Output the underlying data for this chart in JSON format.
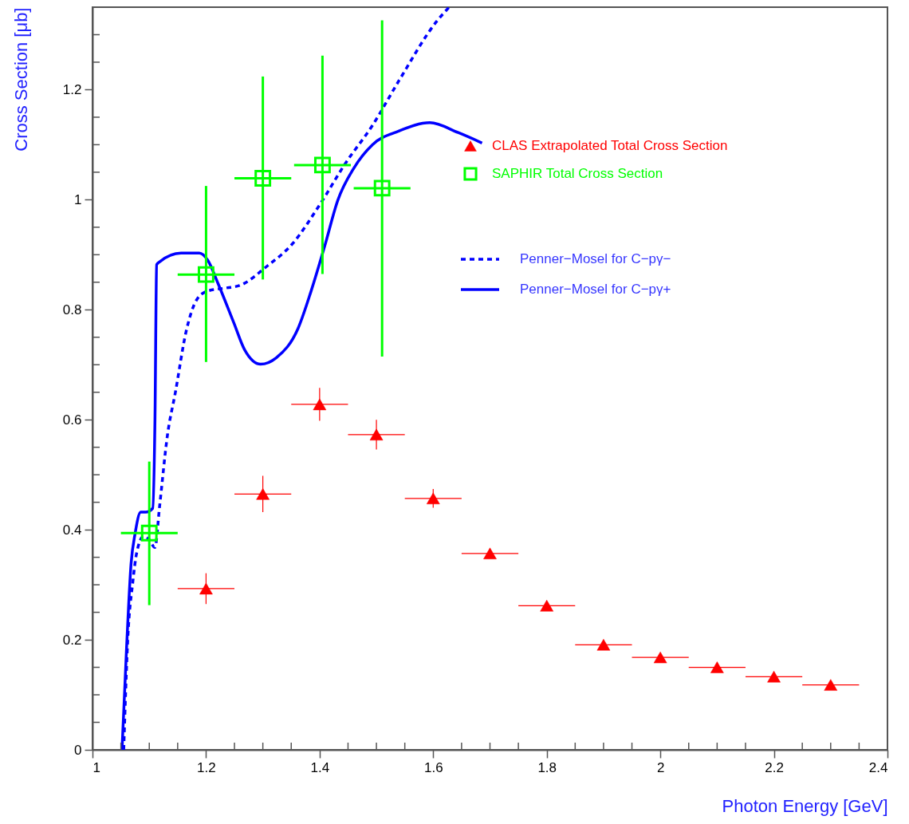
{
  "chart_data": {
    "type": "scatter",
    "xlabel": "Photon Energy [GeV]",
    "ylabel": "Cross Section [μb]",
    "xlim": [
      1,
      2.4
    ],
    "ylim": [
      0,
      1.35
    ],
    "xticks": [
      1,
      {
        "value": 1.05,
        "label": null
      },
      {
        "value": 1.1,
        "label": null
      },
      {
        "value": 1.15,
        "label": null
      },
      1.2,
      {
        "value": 1.25,
        "label": null
      },
      {
        "value": 1.3,
        "label": null
      },
      {
        "value": 1.35,
        "label": null
      },
      1.4,
      {
        "value": 1.45,
        "label": null
      },
      {
        "value": 1.5,
        "label": null
      },
      {
        "value": 1.55,
        "label": null
      },
      1.6,
      {
        "value": 1.65,
        "label": null
      },
      {
        "value": 1.7,
        "label": null
      },
      {
        "value": 1.75,
        "label": null
      },
      1.8,
      {
        "value": 1.85,
        "label": null
      },
      {
        "value": 1.9,
        "label": null
      },
      {
        "value": 1.95,
        "label": null
      },
      2,
      {
        "value": 2.05,
        "label": null
      },
      {
        "value": 2.1,
        "label": null
      },
      {
        "value": 2.15,
        "label": null
      },
      2.2,
      {
        "value": 2.25,
        "label": null
      },
      {
        "value": 2.3,
        "label": null
      },
      {
        "value": 2.35,
        "label": null
      },
      2.4
    ],
    "yticks": [
      0,
      {
        "value": 0.05,
        "label": null
      },
      {
        "value": 0.1,
        "label": null
      },
      {
        "value": 0.15,
        "label": null
      },
      0.2,
      {
        "value": 0.25,
        "label": null
      },
      {
        "value": 0.3,
        "label": null
      },
      {
        "value": 0.35,
        "label": null
      },
      0.4,
      {
        "value": 0.45,
        "label": null
      },
      {
        "value": 0.5,
        "label": null
      },
      {
        "value": 0.55,
        "label": null
      },
      0.6,
      {
        "value": 0.65,
        "label": null
      },
      {
        "value": 0.7,
        "label": null
      },
      {
        "value": 0.75,
        "label": null
      },
      0.8,
      {
        "value": 0.85,
        "label": null
      },
      {
        "value": 0.9,
        "label": null
      },
      {
        "value": 0.95,
        "label": null
      },
      1,
      {
        "value": 1.05,
        "label": null
      },
      {
        "value": 1.1,
        "label": null
      },
      {
        "value": 1.15,
        "label": null
      },
      1.2,
      {
        "value": 1.25,
        "label": null
      },
      {
        "value": 1.3,
        "label": null
      }
    ],
    "grid": false,
    "legend": "top right",
    "series": [
      {
        "name": "CLAS Extrapolated Total Cross Section",
        "color": "#ff0000",
        "marker": "triangle",
        "x": [
          1.2,
          1.3,
          1.4,
          1.5,
          1.6,
          1.7,
          1.8,
          1.9,
          2.0,
          2.1,
          2.2,
          2.3
        ],
        "values": [
          0.293,
          0.465,
          0.628,
          0.573,
          0.457,
          0.357,
          0.262,
          0.191,
          0.168,
          0.15,
          0.133,
          0.118
        ],
        "errors": [
          0.028,
          0.033,
          0.03,
          0.027,
          0.017,
          null,
          null,
          null,
          null,
          null,
          null,
          null
        ],
        "xerrors": [
          0.05,
          0.05,
          0.05,
          0.05,
          0.05,
          0.05,
          0.05,
          0.05,
          0.05,
          0.05,
          0.05,
          0.05
        ]
      },
      {
        "name": "SAPHIR Total Cross Section",
        "color": "#00ff00",
        "marker": "square",
        "x": [
          1.1,
          1.2,
          1.3,
          1.405,
          1.51
        ],
        "values": [
          0.394,
          0.864,
          1.039,
          1.063,
          1.021
        ],
        "errors": [
          [
            0.263,
            0.524
          ],
          [
            0.705,
            1.025
          ],
          [
            0.855,
            1.224
          ],
          [
            0.865,
            1.262
          ],
          [
            0.715,
            1.326
          ]
        ],
        "xerrors": [
          0.05,
          0.05,
          0.05,
          0.05,
          0.05
        ]
      },
      {
        "name": "Penner−Mosel for C−pγ−",
        "type": "line",
        "color": "#0000ff",
        "line_style": "dashed",
        "marker": "none",
        "x": [
          1.055,
          1.062,
          1.071,
          1.078,
          1.09,
          1.099,
          1.11,
          1.118,
          1.132,
          1.146,
          1.165,
          1.184,
          1.203,
          1.231,
          1.259,
          1.306,
          1.353,
          1.399,
          1.446,
          1.493,
          1.54,
          1.606,
          1.628
        ],
        "values": [
          0,
          0.199,
          0.305,
          0.359,
          0.388,
          0.383,
          0.368,
          0.441,
          0.572,
          0.65,
          0.761,
          0.819,
          0.834,
          0.839,
          0.844,
          0.878,
          0.921,
          0.989,
          1.067,
          1.135,
          1.217,
          1.324,
          1.35
        ]
      },
      {
        "name": "Penner−Mosel for C−pγ+",
        "type": "line",
        "color": "#0000ff",
        "line_style": "solid",
        "marker": "none",
        "x": [
          1.052,
          1.06,
          1.068,
          1.075,
          1.085,
          1.094,
          1.106,
          1.11,
          1.113,
          1.118,
          1.156,
          1.188,
          1.203,
          1.221,
          1.249,
          1.268,
          1.296,
          1.324,
          1.362,
          1.385,
          1.409,
          1.432,
          1.46,
          1.493,
          1.54,
          1.594,
          1.644,
          1.686
        ],
        "values": [
          0,
          0.185,
          0.339,
          0.393,
          0.432,
          0.432,
          0.439,
          0.6,
          0.882,
          0.887,
          0.903,
          0.903,
          0.89,
          0.848,
          0.776,
          0.727,
          0.701,
          0.713,
          0.766,
          0.834,
          0.916,
          0.999,
          1.057,
          1.1,
          1.125,
          1.14,
          1.122,
          1.103
        ]
      }
    ]
  }
}
